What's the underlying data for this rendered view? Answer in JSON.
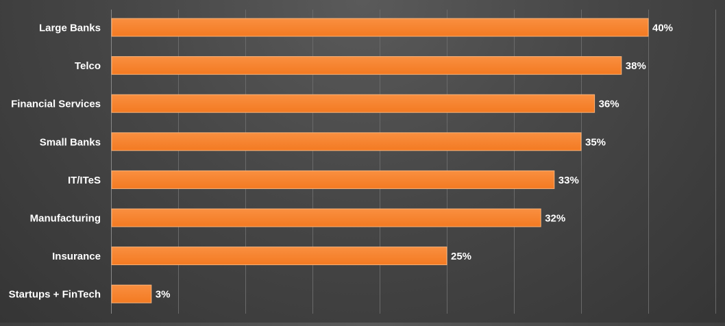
{
  "chart_data": {
    "type": "bar",
    "orientation": "horizontal",
    "title": "",
    "xlabel": "",
    "ylabel": "",
    "categories": [
      "Large Banks",
      "Telco",
      "Financial Services",
      "Small Banks",
      "IT/ITeS",
      "Manufacturing",
      "Insurance",
      "Startups + FinTech"
    ],
    "values": [
      40,
      38,
      36,
      35,
      33,
      32,
      25,
      3
    ],
    "value_labels": [
      "40%",
      "38%",
      "36%",
      "35%",
      "33%",
      "32%",
      "25%",
      "3%"
    ],
    "xlim": [
      0,
      45
    ],
    "grid": "vertical",
    "legend": "none",
    "colors": {
      "bar": "#f7852f",
      "bar_border": "#fbb47a",
      "text": "#ffffff",
      "grid": "#6a6a6a",
      "axis": "#8a8a8a"
    }
  }
}
